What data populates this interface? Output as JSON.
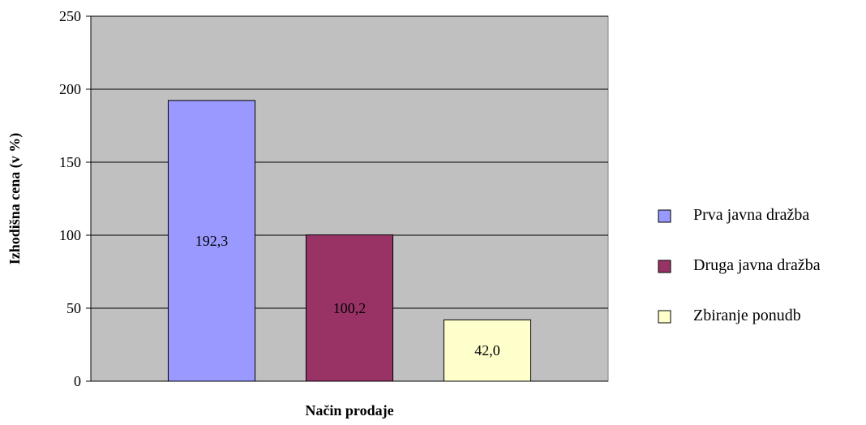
{
  "chart_data": {
    "type": "bar",
    "xlabel": "Način prodaje",
    "ylabel": "Izhodišna cena (v %)",
    "ylim": [
      0,
      250
    ],
    "yticks": [
      0,
      50,
      100,
      150,
      200,
      250
    ],
    "grid": true,
    "legend_position": "right",
    "plot_background": "#c0c0c0",
    "series": [
      {
        "name": "Prva javna dražba",
        "value": 192.3,
        "label": "192,3",
        "color": "#9999ff"
      },
      {
        "name": "Druga javna dražba",
        "value": 100.2,
        "label": "100,2",
        "color": "#993366"
      },
      {
        "name": "Zbiranje ponudb",
        "value": 42.0,
        "label": "42,0",
        "color": "#ffffcc"
      }
    ]
  }
}
